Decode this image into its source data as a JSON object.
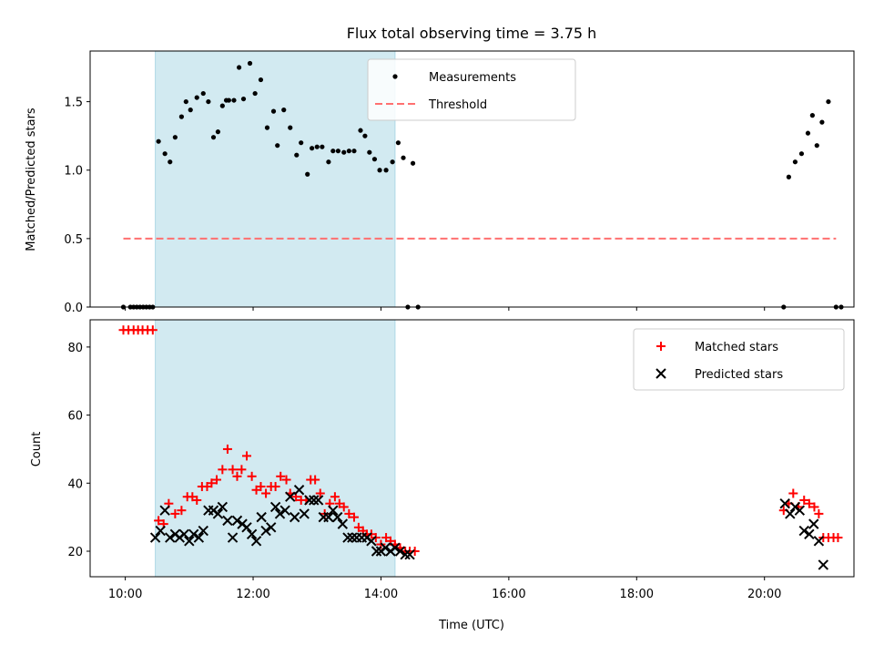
{
  "colors": {
    "shade": "#add8e6",
    "measurement": "#000000",
    "threshold": "#ff7070",
    "matched": "#ff0000",
    "predicted": "#000000"
  },
  "chart_data": [
    {
      "type": "scatter",
      "title": "Flux total observing time = 3.75 h",
      "xlabel": "",
      "ylabel": "Matched/Predicted stars",
      "xlim_hours": [
        9.45,
        21.4
      ],
      "ylim": [
        0,
        1.87
      ],
      "yticks": [
        "0.0",
        "0.5",
        "1.0",
        "1.5"
      ],
      "grid": false,
      "legend_position": "top-center",
      "shaded_interval_hours": [
        10.47,
        14.22
      ],
      "series": [
        {
          "name": "Measurements",
          "x": [
            9.97,
            10.08,
            10.13,
            10.18,
            10.23,
            10.28,
            10.33,
            10.38,
            10.43,
            10.52,
            10.62,
            10.7,
            10.78,
            10.88,
            10.95,
            11.02,
            11.12,
            11.22,
            11.3,
            11.38,
            11.45,
            11.52,
            11.58,
            11.62,
            11.7,
            11.78,
            11.85,
            11.95,
            12.03,
            12.12,
            12.22,
            12.32,
            12.38,
            12.48,
            12.58,
            12.68,
            12.75,
            12.85,
            12.92,
            13.0,
            13.08,
            13.18,
            13.25,
            13.33,
            13.42,
            13.5,
            13.58,
            13.68,
            13.75,
            13.82,
            13.9,
            13.98,
            14.08,
            14.18,
            14.27,
            14.35,
            14.42,
            14.5,
            14.58,
            20.3,
            20.38,
            20.48,
            20.58,
            20.68,
            20.75,
            20.82,
            20.9,
            21.0,
            21.12,
            21.2
          ],
          "y": [
            0,
            0,
            0,
            0,
            0,
            0,
            0,
            0,
            0,
            1.21,
            1.12,
            1.06,
            1.24,
            1.39,
            1.5,
            1.44,
            1.53,
            1.56,
            1.5,
            1.24,
            1.28,
            1.47,
            1.51,
            1.51,
            1.51,
            1.75,
            1.52,
            1.78,
            1.56,
            1.66,
            1.31,
            1.43,
            1.18,
            1.44,
            1.31,
            1.11,
            1.2,
            0.97,
            1.16,
            1.17,
            1.17,
            1.06,
            1.14,
            1.14,
            1.13,
            1.14,
            1.14,
            1.29,
            1.25,
            1.13,
            1.08,
            1.0,
            1.0,
            1.06,
            1.2,
            1.09,
            0,
            1.05,
            0,
            0,
            0.95,
            1.06,
            1.12,
            1.27,
            1.4,
            1.18,
            1.35,
            1.5,
            0,
            0
          ]
        },
        {
          "name": "Threshold",
          "style": "dashed",
          "x": [
            9.97,
            21.12
          ],
          "y": [
            0.5,
            0.5
          ]
        }
      ]
    },
    {
      "type": "scatter",
      "title": "",
      "xlabel": "Time (UTC)",
      "ylabel": "Count",
      "xlim_hours": [
        9.45,
        21.4
      ],
      "ylim": [
        12.5,
        88
      ],
      "yticks": [
        "20",
        "40",
        "60",
        "80"
      ],
      "xticks": [
        "10:00",
        "12:00",
        "14:00",
        "16:00",
        "18:00",
        "20:00"
      ],
      "grid": false,
      "legend_position": "top-right",
      "shaded_interval_hours": [
        10.47,
        14.22
      ],
      "series": [
        {
          "name": "Matched stars",
          "marker": "+",
          "x": [
            9.97,
            10.05,
            10.13,
            10.2,
            10.27,
            10.35,
            10.43,
            10.52,
            10.6,
            10.68,
            10.78,
            10.88,
            10.97,
            11.05,
            11.12,
            11.2,
            11.28,
            11.35,
            11.43,
            11.52,
            11.6,
            11.68,
            11.75,
            11.82,
            11.9,
            11.98,
            12.05,
            12.12,
            12.2,
            12.28,
            12.35,
            12.43,
            12.52,
            12.58,
            12.67,
            12.75,
            12.83,
            12.9,
            12.97,
            13.05,
            13.12,
            13.2,
            13.28,
            13.35,
            13.42,
            13.5,
            13.58,
            13.65,
            13.72,
            13.78,
            13.85,
            13.92,
            14.0,
            14.08,
            14.15,
            14.22,
            14.3,
            14.38,
            14.45,
            14.53,
            20.3,
            20.38,
            20.45,
            20.53,
            20.62,
            20.7,
            20.78,
            20.85,
            20.92,
            21.0,
            21.08,
            21.15
          ],
          "y": [
            85,
            85,
            85,
            85,
            85,
            85,
            85,
            29,
            28,
            34,
            31,
            32,
            36,
            36,
            35,
            39,
            39,
            40,
            41,
            44,
            50,
            44,
            42,
            44,
            48,
            42,
            38,
            39,
            37,
            39,
            39,
            42,
            41,
            37,
            36,
            35,
            35,
            41,
            41,
            37,
            31,
            34,
            36,
            34,
            33,
            31,
            30,
            27,
            26,
            25,
            25,
            24,
            22,
            24,
            23,
            22,
            21,
            20,
            20,
            20,
            32,
            34,
            37,
            33,
            35,
            34,
            33,
            31,
            24,
            24,
            24,
            24
          ]
        },
        {
          "name": "Predicted stars",
          "marker": "x",
          "x": [
            10.47,
            10.55,
            10.62,
            10.7,
            10.78,
            10.85,
            10.92,
            11.0,
            11.07,
            11.15,
            11.22,
            11.3,
            11.38,
            11.45,
            11.52,
            11.6,
            11.68,
            11.75,
            11.83,
            11.9,
            11.98,
            12.05,
            12.13,
            12.2,
            12.28,
            12.35,
            12.42,
            12.5,
            12.58,
            12.65,
            12.72,
            12.8,
            12.88,
            12.95,
            13.02,
            13.1,
            13.18,
            13.25,
            13.32,
            13.4,
            13.48,
            13.55,
            13.62,
            13.7,
            13.78,
            13.85,
            13.93,
            14.0,
            14.07,
            14.15,
            14.22,
            14.3,
            14.38,
            14.45,
            20.32,
            20.4,
            20.48,
            20.55,
            20.62,
            20.7,
            20.77,
            20.85,
            20.92
          ],
          "y": [
            24,
            26,
            32,
            24,
            25,
            24,
            25,
            23,
            25,
            24,
            26,
            32,
            32,
            31,
            33,
            29,
            24,
            29,
            28,
            27,
            25,
            23,
            30,
            26,
            27,
            33,
            31,
            32,
            36,
            30,
            38,
            31,
            35,
            35,
            35,
            30,
            30,
            32,
            30,
            28,
            24,
            24,
            24,
            24,
            24,
            23,
            20,
            20,
            21,
            20,
            21,
            20,
            19,
            19,
            34,
            31,
            33,
            32,
            26,
            25,
            28,
            23,
            16
          ]
        }
      ]
    }
  ]
}
